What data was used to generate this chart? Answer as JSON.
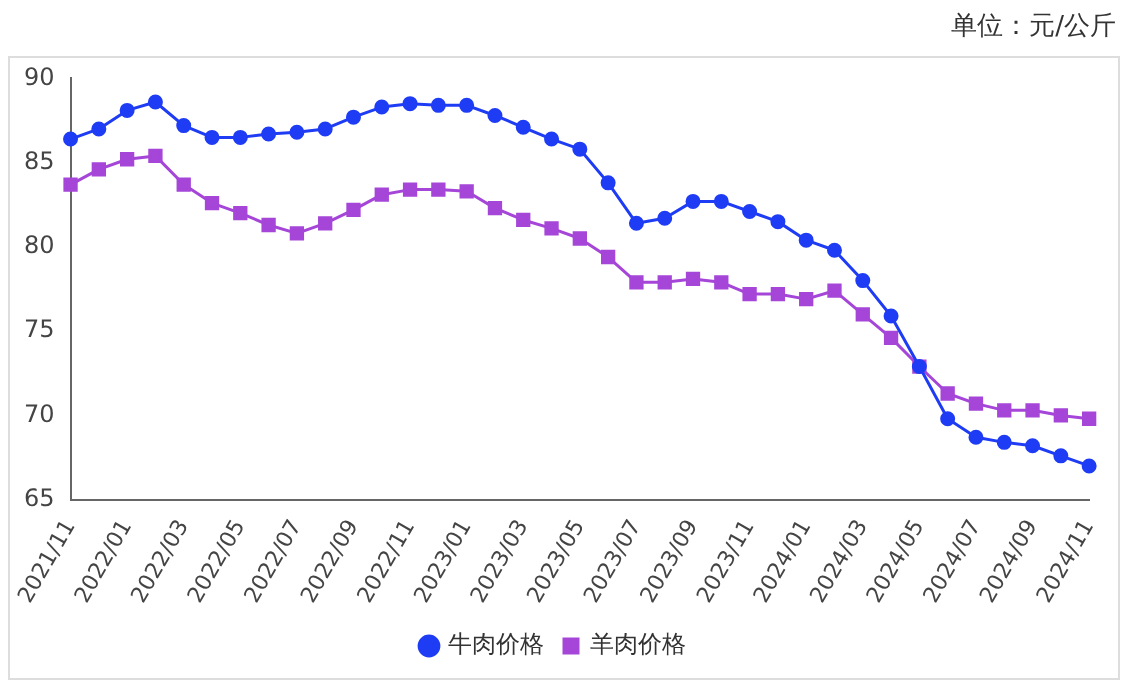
{
  "chart_data": {
    "type": "line",
    "annotations": [
      "单位：元/公斤"
    ],
    "categories": [
      "2021/11",
      null,
      "2022/01",
      null,
      "2022/03",
      null,
      "2022/05",
      null,
      "2022/07",
      null,
      "2022/09",
      null,
      "2022/11",
      null,
      "2023/01",
      null,
      "2023/03",
      null,
      "2023/05",
      null,
      "2023/07",
      null,
      "2023/09",
      null,
      "2023/11",
      null,
      "2024/01",
      null,
      "2024/03",
      null,
      "2024/05",
      null,
      "2024/07",
      null,
      "2024/09",
      null,
      "2024/11"
    ],
    "series": [
      {
        "name": "牛肉价格",
        "color": "#1f3cf5",
        "marker": "circle",
        "values": [
          86.4,
          87.0,
          88.1,
          88.6,
          87.2,
          86.5,
          86.5,
          86.7,
          86.8,
          87.0,
          87.7,
          88.3,
          88.5,
          88.4,
          88.4,
          87.8,
          87.1,
          86.4,
          85.8,
          83.8,
          81.4,
          81.7,
          82.7,
          82.7,
          82.1,
          81.5,
          80.4,
          79.8,
          78.0,
          75.9,
          72.9,
          69.8,
          68.7,
          68.4,
          68.2,
          67.6,
          67.0
        ]
      },
      {
        "name": "羊肉价格",
        "color": "#a546d8",
        "marker": "square",
        "values": [
          83.7,
          84.6,
          85.2,
          85.4,
          83.7,
          82.6,
          82.0,
          81.3,
          80.8,
          81.4,
          82.2,
          83.1,
          83.4,
          83.4,
          83.3,
          82.3,
          81.6,
          81.1,
          80.5,
          79.4,
          77.9,
          77.9,
          78.1,
          77.9,
          77.2,
          77.2,
          76.9,
          77.4,
          76.0,
          74.6,
          72.9,
          71.3,
          70.7,
          70.3,
          70.3,
          70.0,
          69.8
        ]
      }
    ],
    "ylim": [
      65,
      90
    ],
    "yticks": [
      65,
      70,
      75,
      80,
      85,
      90
    ],
    "grid": false,
    "legend": "bottom"
  }
}
